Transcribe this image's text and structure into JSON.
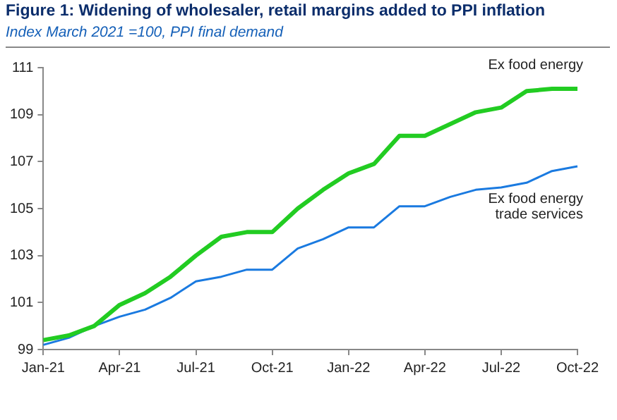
{
  "chart_data": {
    "type": "line",
    "title": "Figure 1: Widening of wholesaler, retail margins added to PPI inflation",
    "subtitle": "Index March 2021 =100, PPI final demand",
    "categories": [
      "Jan-21",
      null,
      null,
      "Apr-21",
      null,
      null,
      "Jul-21",
      null,
      null,
      "Oct-21",
      null,
      null,
      "Jan-22",
      null,
      null,
      "Apr-22",
      null,
      null,
      "Jul-22",
      null,
      null,
      "Oct-22"
    ],
    "series": [
      {
        "name": "Ex food energy",
        "color": "#22cc22",
        "values": [
          99.4,
          99.6,
          100.0,
          100.9,
          101.4,
          102.1,
          103.0,
          103.8,
          104.0,
          104.0,
          105.0,
          105.8,
          106.5,
          106.9,
          108.1,
          108.1,
          108.6,
          109.1,
          109.3,
          110.0,
          110.1,
          110.1
        ]
      },
      {
        "name": "Ex food energy trade services",
        "color": "#1a7ae0",
        "values": [
          99.2,
          99.5,
          100.0,
          100.4,
          100.7,
          101.2,
          101.9,
          102.1,
          102.4,
          102.4,
          103.3,
          103.7,
          104.2,
          104.2,
          105.1,
          105.1,
          105.5,
          105.8,
          105.9,
          106.1,
          106.6,
          106.8
        ]
      }
    ],
    "ylim": [
      99,
      111
    ],
    "yticks": [
      99,
      101,
      103,
      105,
      107,
      109,
      111
    ],
    "grid": false,
    "legend": false
  }
}
